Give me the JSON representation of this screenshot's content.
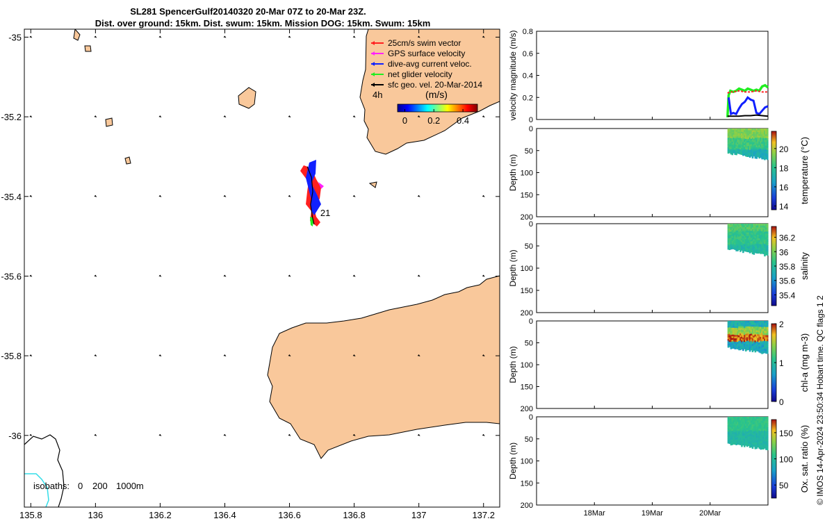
{
  "title_line1": "SL281 SpencerGulf20140320 20-Mar 07Z to 20-Mar 23Z.",
  "title_line2": "Dist. over ground: 15km. Dist. swum: 15km. Mission DOG: 15km. Swum: 15km",
  "credit": "© IMOS 14-Apr-2024 23:50:34 Hobart time. QC flags 1  2",
  "colors": {
    "land": "#f9c89b",
    "sea": "#ffffff",
    "coast": "#000000",
    "isobath_200": "#33dde8"
  },
  "chart_data": [
    {
      "type": "scatter",
      "id": "map",
      "x_ticks": [
        "135.8",
        "136",
        "136.2",
        "136.4",
        "136.6",
        "136.8",
        "137",
        "137.2"
      ],
      "y_ticks": [
        "-35",
        "-35.2",
        "-35.4",
        "-35.6",
        "-35.8",
        "-36"
      ],
      "xlim": [
        135.78,
        137.25
      ],
      "ylim": [
        -36.18,
        -34.98
      ],
      "legend": {
        "items": [
          {
            "label": "25cm/s swim vector",
            "color": "#ff2020"
          },
          {
            "label": "GPS surface velocity",
            "color": "#ff20ff"
          },
          {
            "label": "dive-avg current veloc.",
            "color": "#1020ff"
          },
          {
            "label": "net glider velocity",
            "color": "#20ee20"
          },
          {
            "label": "sfc geo. vel. 20-Mar-2014",
            "color": "#000000"
          }
        ],
        "hours": "4h",
        "colorbar_title": "(m/s)",
        "colorbar_ticks": [
          "0",
          "0.2",
          "0.4"
        ],
        "colorbar_range": [
          -0.05,
          0.5
        ]
      },
      "isobaths": {
        "label": "isobaths:",
        "values": [
          "0",
          "200",
          "1000m"
        ]
      },
      "track_end_label": "21",
      "track": [
        {
          "x": 136.655,
          "y": -35.325
        },
        {
          "x": 136.668,
          "y": -35.352
        },
        {
          "x": 136.672,
          "y": -35.388
        },
        {
          "x": 136.665,
          "y": -35.42
        },
        {
          "x": 136.671,
          "y": -35.452
        },
        {
          "x": 136.676,
          "y": -35.47
        }
      ],
      "vector_grid": {
        "lons": [
          135.8,
          136.0,
          136.2,
          136.4,
          136.6,
          136.8,
          137.0,
          137.2
        ],
        "lats": [
          -35.0,
          -35.2,
          -35.4,
          -35.6,
          -35.8,
          -36.0
        ]
      }
    },
    {
      "type": "line",
      "id": "velocity",
      "ylabel": "velocity magnitude (m/s)",
      "ylim": [
        0,
        0.8
      ],
      "y_ticks": [
        "0",
        "0.2",
        "0.4",
        "0.6",
        "0.8"
      ],
      "x_ticks": [
        "18Mar",
        "19Mar",
        "20Mar"
      ],
      "xlim": [
        17,
        21.0
      ],
      "series": [
        {
          "color": "#20ee20",
          "x": [
            20.3,
            20.32,
            20.35,
            20.4,
            20.45,
            20.5,
            20.55,
            20.6,
            20.65,
            20.7,
            20.75,
            20.8,
            20.85,
            20.9,
            20.95,
            21.0
          ],
          "values": [
            0.02,
            0.22,
            0.26,
            0.25,
            0.26,
            0.28,
            0.27,
            0.26,
            0.28,
            0.27,
            0.26,
            0.27,
            0.26,
            0.3,
            0.31,
            0.29
          ]
        },
        {
          "color": "#ff2020",
          "x": [
            20.3,
            20.35,
            20.4,
            20.5,
            20.6,
            20.7,
            20.8,
            20.9,
            21.0
          ],
          "values": [
            0.24,
            0.25,
            0.25,
            0.26,
            0.25,
            0.25,
            0.26,
            0.25,
            0.25
          ]
        },
        {
          "color": "#1020ff",
          "x": [
            20.32,
            20.36,
            20.4,
            20.45,
            20.5,
            20.55,
            20.6,
            20.65,
            20.7,
            20.75,
            20.8,
            20.85,
            20.9,
            20.95,
            21.0
          ],
          "values": [
            0.2,
            0.05,
            0.06,
            0.05,
            0.1,
            0.14,
            0.16,
            0.2,
            0.18,
            0.17,
            0.06,
            0.05,
            0.08,
            0.11,
            0.12
          ]
        },
        {
          "color": "#000000",
          "x": [
            20.3,
            20.4,
            20.5,
            20.6,
            20.7,
            20.8,
            20.9,
            21.0
          ],
          "values": [
            0.03,
            0.03,
            0.03,
            0.035,
            0.035,
            0.04,
            0.035,
            0.03
          ]
        }
      ]
    },
    {
      "type": "heatmap",
      "id": "temperature",
      "ylabel": "Depth (m)",
      "clabel": "temperature (°C)",
      "y_ticks": [
        "0",
        "50",
        "100",
        "150",
        "200"
      ],
      "ylim": [
        0,
        200
      ],
      "xlim": [
        17,
        21.0
      ],
      "data_x": [
        20.3,
        21.0
      ],
      "data_depth": [
        0,
        70
      ],
      "c_ticks": [
        "14",
        "16",
        "18",
        "20"
      ],
      "crange": [
        13.6,
        21.8
      ]
    },
    {
      "type": "heatmap",
      "id": "salinity",
      "ylabel": "Depth (m)",
      "clabel": "salinity",
      "y_ticks": [
        "0",
        "50",
        "100",
        "150",
        "200"
      ],
      "ylim": [
        0,
        200
      ],
      "xlim": [
        17,
        21.0
      ],
      "data_x": [
        20.3,
        21.0
      ],
      "data_depth": [
        0,
        72
      ],
      "c_ticks": [
        "35.4",
        "35.6",
        "35.8",
        "36",
        "36.2"
      ],
      "crange": [
        35.25,
        36.35
      ]
    },
    {
      "type": "heatmap",
      "id": "chla",
      "ylabel": "Depth (m)",
      "clabel": "chl-a (mg m-3)",
      "y_ticks": [
        "0",
        "50",
        "100",
        "150",
        "200"
      ],
      "ylim": [
        0,
        200
      ],
      "xlim": [
        17,
        21.0
      ],
      "data_x": [
        20.3,
        21.0
      ],
      "data_depth": [
        0,
        75
      ],
      "c_ticks": [
        "0",
        "1",
        "2"
      ],
      "crange": [
        0,
        2
      ]
    },
    {
      "type": "heatmap",
      "id": "oxygen",
      "ylabel": "Depth (m)",
      "clabel": "Ox. sat. ratio (%)",
      "y_ticks": [
        "0",
        "50",
        "100",
        "150",
        "200"
      ],
      "ylim": [
        0,
        200
      ],
      "xlim": [
        17,
        21.0
      ],
      "data_x": [
        20.3,
        21.0
      ],
      "data_depth": [
        0,
        75
      ],
      "c_ticks": [
        "50",
        "100",
        "150"
      ],
      "crange": [
        25,
        175
      ]
    }
  ]
}
